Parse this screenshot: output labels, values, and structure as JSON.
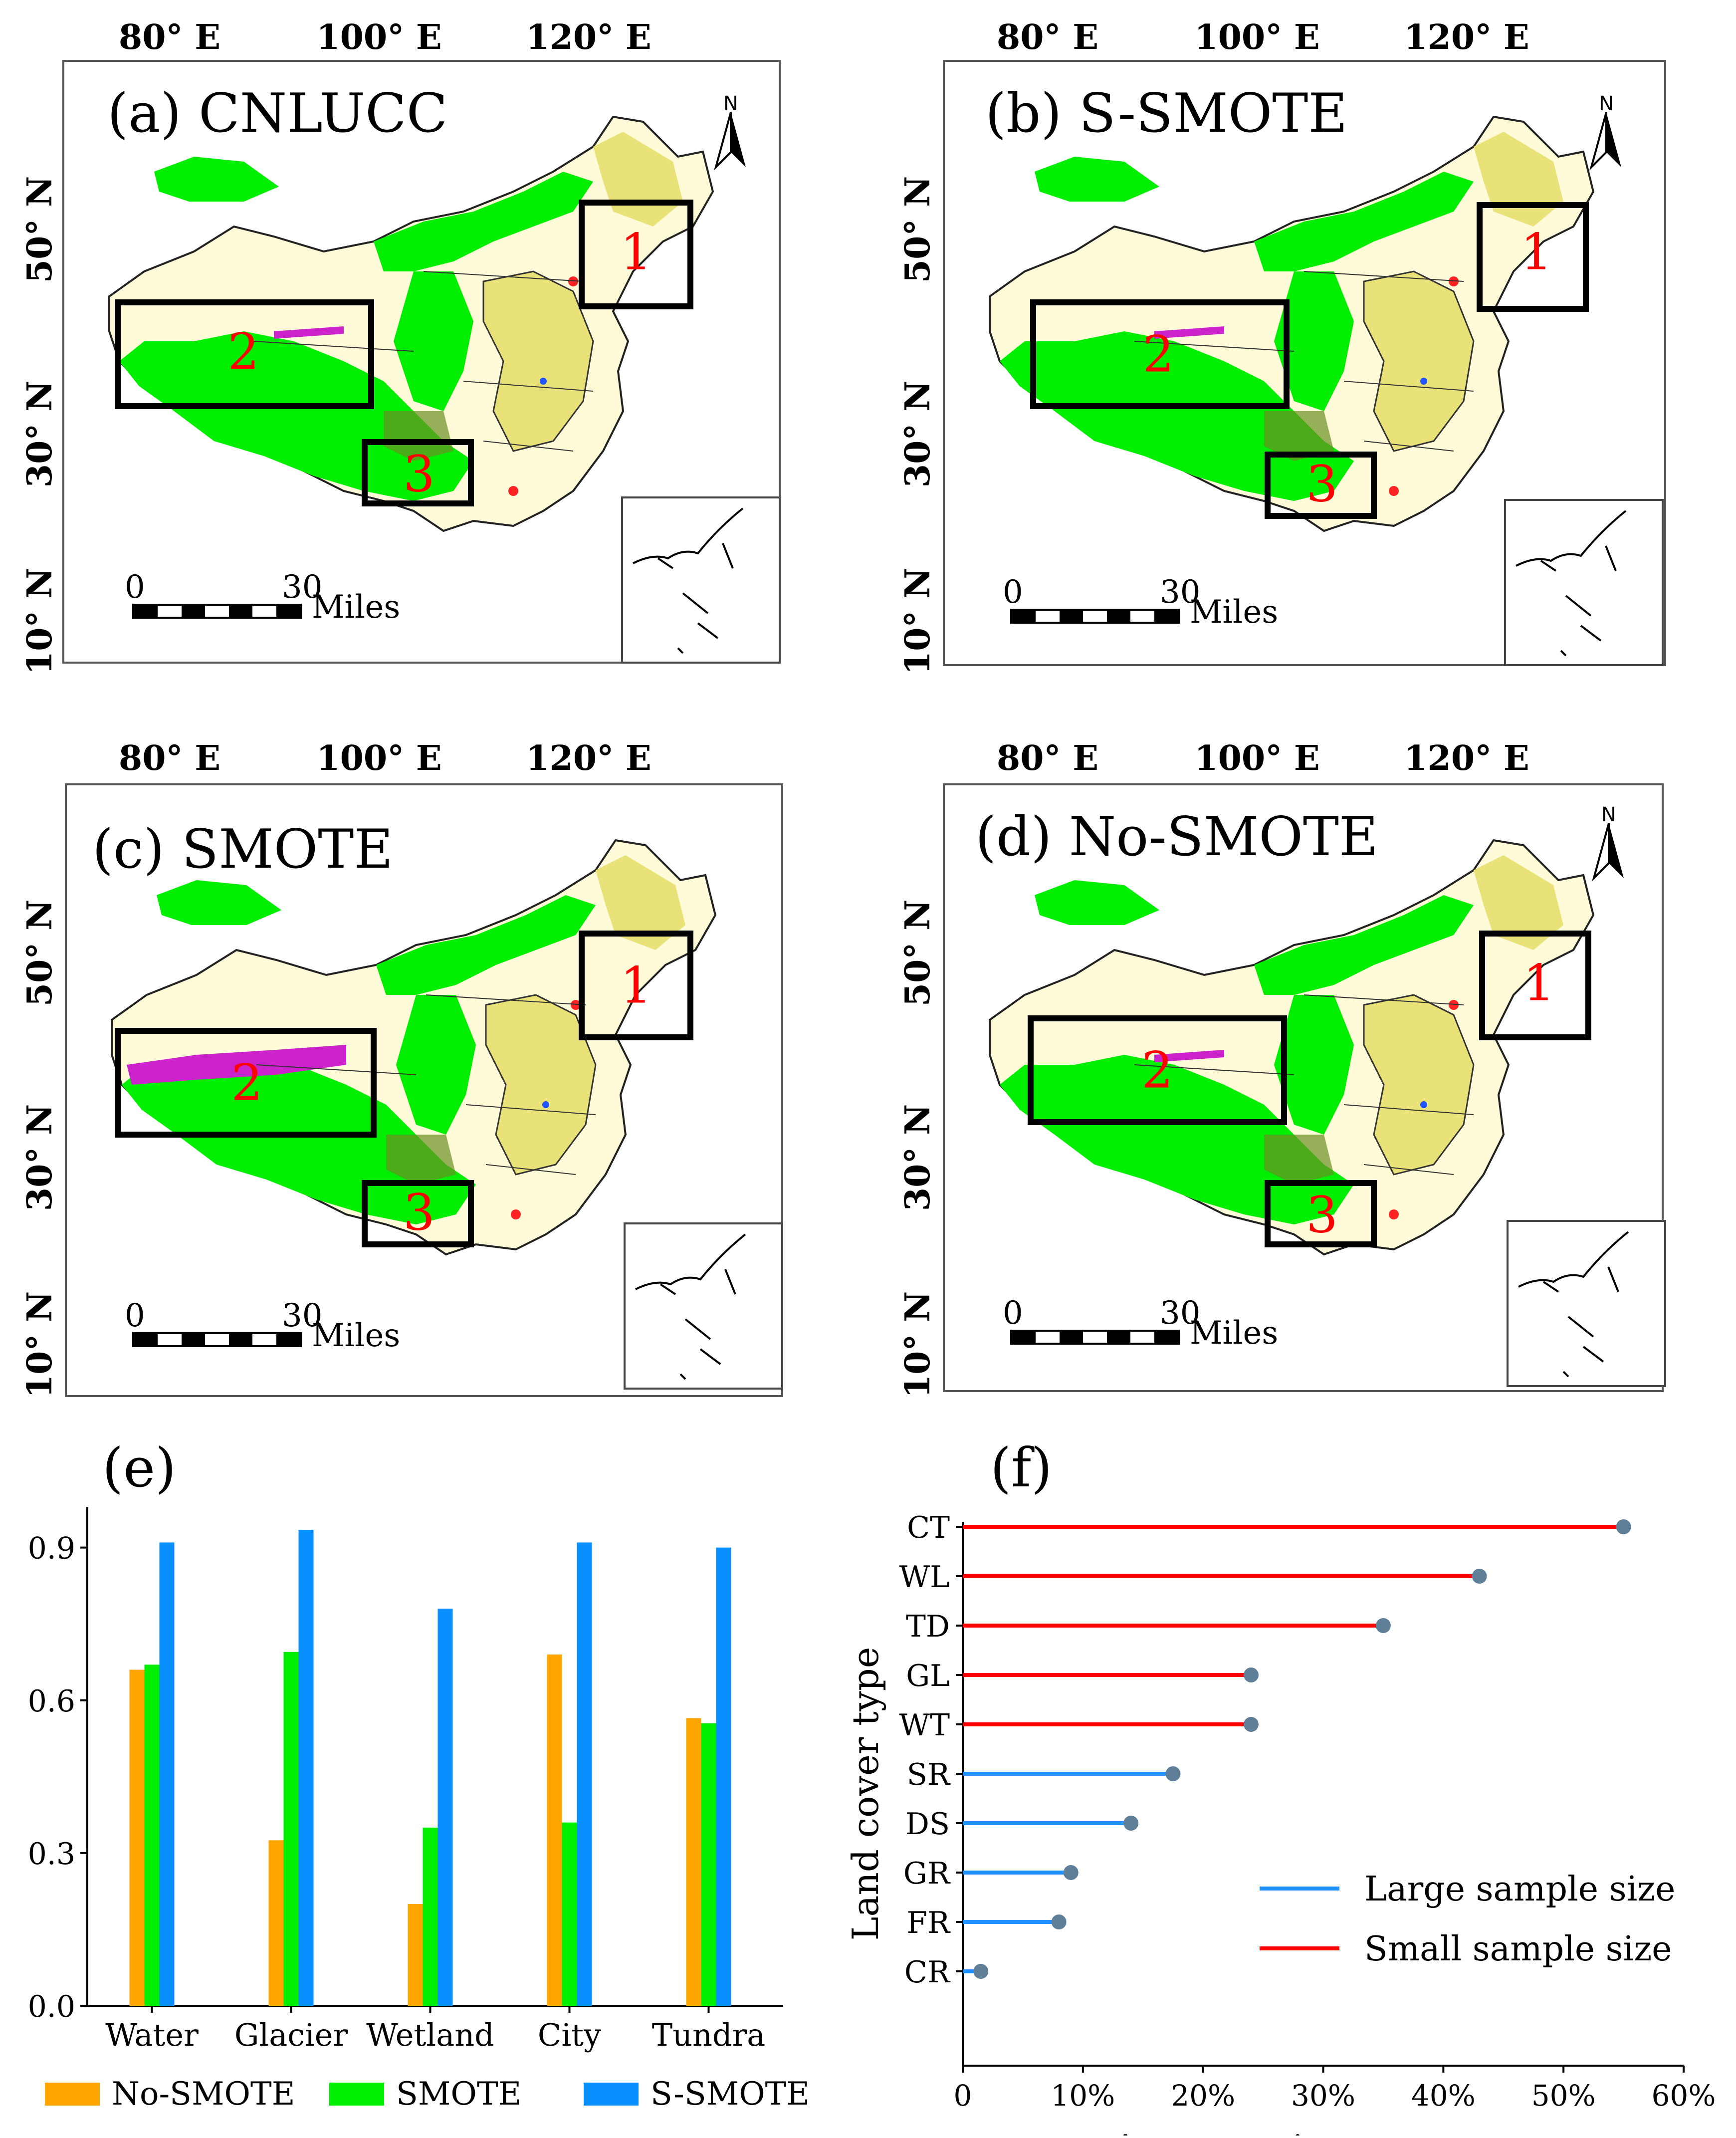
{
  "maps": [
    {
      "id": "a",
      "title": "(a) CNLUCC"
    },
    {
      "id": "b",
      "title": "(b) S-SMOTE"
    },
    {
      "id": "c",
      "title": "(c) SMOTE"
    },
    {
      "id": "d",
      "title": "(d) No-SMOTE"
    }
  ],
  "map_common": {
    "lon_labels": [
      "80° E",
      "100° E",
      "120° E"
    ],
    "lat_labels": [
      "50° N",
      "30° N",
      "10° N"
    ],
    "scale_start": "0",
    "scale_end": "30",
    "scale_unit": "Miles",
    "north_label": "N",
    "region_labels": [
      "1",
      "2",
      "3"
    ]
  },
  "colors": {
    "forest": "#00ee00",
    "desert": "#fffbd8",
    "cropland": "#e8e278",
    "glacier": "#cc22cc",
    "water": "#2255ff",
    "city": "#ff2222",
    "wetland": "#6b8e23",
    "no_smote": "#ffa500",
    "smote": "#00ee00",
    "s_smote": "#0a8fff",
    "large_sample": "#1e90ff",
    "small_sample": "#ff0000",
    "dot": "#5f7f99"
  },
  "panel_e": {
    "label": "(e)",
    "chart_data": {
      "type": "bar",
      "categories": [
        "Water",
        "Glacier",
        "Wetland",
        "City",
        "Tundra"
      ],
      "series": [
        {
          "name": "No-SMOTE",
          "values": [
            0.66,
            0.325,
            0.2,
            0.69,
            0.565
          ]
        },
        {
          "name": "SMOTE",
          "values": [
            0.67,
            0.695,
            0.35,
            0.36,
            0.555
          ]
        },
        {
          "name": "S-SMOTE",
          "values": [
            0.91,
            0.935,
            0.78,
            0.91,
            0.9
          ]
        }
      ],
      "yticks": [
        "0.0",
        "0.3",
        "0.6",
        "0.9"
      ],
      "ylim": [
        0,
        0.98
      ],
      "title": "",
      "xlabel": "",
      "ylabel": ""
    }
  },
  "panel_f": {
    "label": "(f)",
    "chart_data": {
      "type": "lollipop",
      "categories": [
        "CT",
        "WL",
        "TD",
        "GL",
        "WT",
        "SR",
        "DS",
        "GR",
        "FR",
        "CR"
      ],
      "values": [
        55,
        43,
        35,
        24,
        24,
        17.5,
        14,
        9,
        8,
        1.5
      ],
      "groups": [
        "Small sample size",
        "Small sample size",
        "Small sample size",
        "Small sample size",
        "Small sample size",
        "Large sample size",
        "Large sample size",
        "Large sample size",
        "Large sample size",
        "Large sample size"
      ],
      "xticks": [
        "0",
        "10%",
        "20%",
        "30%",
        "40%",
        "50%",
        "60%"
      ],
      "xlim": [
        0,
        60
      ],
      "xlabel": "Accuracy improvement",
      "ylabel": "Land cover type",
      "legend": [
        "Large sample size",
        "Small sample size"
      ],
      "legend_position": "lower-right"
    }
  },
  "legend_e": [
    "No-SMOTE",
    "SMOTE",
    "S-SMOTE"
  ]
}
